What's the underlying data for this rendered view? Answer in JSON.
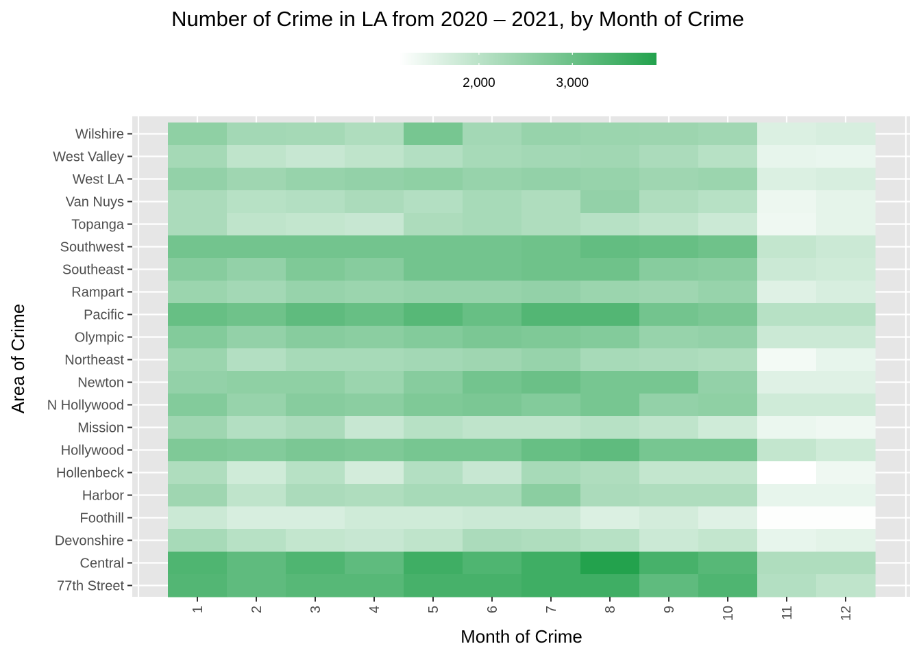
{
  "chart_data": {
    "type": "heatmap",
    "title": "Number of Crime in LA from 2020 – 2021, by Month of Crime",
    "xlabel": "Month of Crime",
    "ylabel": "Area of Crime",
    "x_categories": [
      "1",
      "2",
      "3",
      "4",
      "5",
      "6",
      "7",
      "8",
      "9",
      "10",
      "11",
      "12"
    ],
    "y_categories": [
      "Wilshire",
      "West Valley",
      "West LA",
      "Van Nuys",
      "Topanga",
      "Southwest",
      "Southeast",
      "Rampart",
      "Pacific",
      "Olympic",
      "Northeast",
      "Newton",
      "N Hollywood",
      "Mission",
      "Hollywood",
      "Hollenbeck",
      "Harbor",
      "Foothill",
      "Devonshire",
      "Central",
      "77th Street"
    ],
    "values": [
      [
        2550,
        2300,
        2280,
        2150,
        2850,
        2300,
        2450,
        2400,
        2380,
        2320,
        1600,
        1650
      ],
      [
        2280,
        1950,
        1850,
        1950,
        2100,
        2250,
        2300,
        2320,
        2200,
        2050,
        1450,
        1420
      ],
      [
        2500,
        2350,
        2450,
        2500,
        2550,
        2450,
        2500,
        2450,
        2350,
        2400,
        1600,
        1650
      ],
      [
        2200,
        2050,
        2100,
        2200,
        2100,
        2250,
        2150,
        2500,
        2150,
        2050,
        1380,
        1480
      ],
      [
        2200,
        1950,
        1900,
        1850,
        2180,
        2250,
        2150,
        2050,
        1950,
        1800,
        1350,
        1480
      ],
      [
        2900,
        2900,
        2900,
        2900,
        2900,
        2900,
        2950,
        3100,
        3050,
        2950,
        1900,
        1800
      ],
      [
        2650,
        2500,
        2750,
        2650,
        2900,
        2900,
        2950,
        2950,
        2650,
        2600,
        1800,
        1750
      ],
      [
        2400,
        2300,
        2450,
        2400,
        2450,
        2450,
        2500,
        2400,
        2350,
        2450,
        1550,
        1650
      ],
      [
        3050,
        2950,
        3150,
        3050,
        3250,
        3050,
        3300,
        3300,
        2900,
        2800,
        2050,
        2050
      ],
      [
        2700,
        2500,
        2650,
        2600,
        2700,
        2800,
        2750,
        2700,
        2450,
        2500,
        1800,
        1800
      ],
      [
        2400,
        2100,
        2250,
        2250,
        2300,
        2350,
        2450,
        2250,
        2200,
        2150,
        1300,
        1450
      ],
      [
        2500,
        2550,
        2550,
        2400,
        2650,
        2900,
        3000,
        2850,
        2850,
        2500,
        1550,
        1550
      ],
      [
        2700,
        2450,
        2650,
        2600,
        2750,
        2800,
        2700,
        2850,
        2500,
        2550,
        1750,
        1750
      ],
      [
        2350,
        2100,
        2200,
        1850,
        2050,
        1950,
        1950,
        2050,
        1950,
        1750,
        1400,
        1350
      ],
      [
        2750,
        2700,
        2800,
        2750,
        2850,
        2850,
        3050,
        3150,
        2850,
        2850,
        1900,
        1750
      ],
      [
        2150,
        1750,
        2050,
        1700,
        2100,
        1850,
        2250,
        2150,
        1900,
        1900,
        1150,
        1350
      ],
      [
        2350,
        1950,
        2200,
        2150,
        2250,
        2250,
        2600,
        2200,
        2150,
        2150,
        1450,
        1450
      ],
      [
        1800,
        1650,
        1650,
        1750,
        1750,
        1800,
        1800,
        1600,
        1700,
        1550,
        1180,
        1180
      ],
      [
        2250,
        2050,
        1900,
        1850,
        1950,
        2200,
        2150,
        2050,
        1800,
        1900,
        1450,
        1500
      ],
      [
        3350,
        3150,
        3350,
        3150,
        3550,
        3350,
        3550,
        3900,
        3450,
        3250,
        2150,
        2150
      ],
      [
        3300,
        3150,
        3250,
        3250,
        3450,
        3450,
        3550,
        3550,
        3150,
        3350,
        2100,
        1950
      ]
    ],
    "color_scale": {
      "min": 1150,
      "max": 3900,
      "low_color": "#ffffff",
      "high_color": "#23a24d"
    },
    "legend": {
      "position": "top",
      "ticks": [
        2000,
        3000
      ],
      "tick_labels": [
        "2,000",
        "3,000"
      ]
    },
    "grid": true
  }
}
